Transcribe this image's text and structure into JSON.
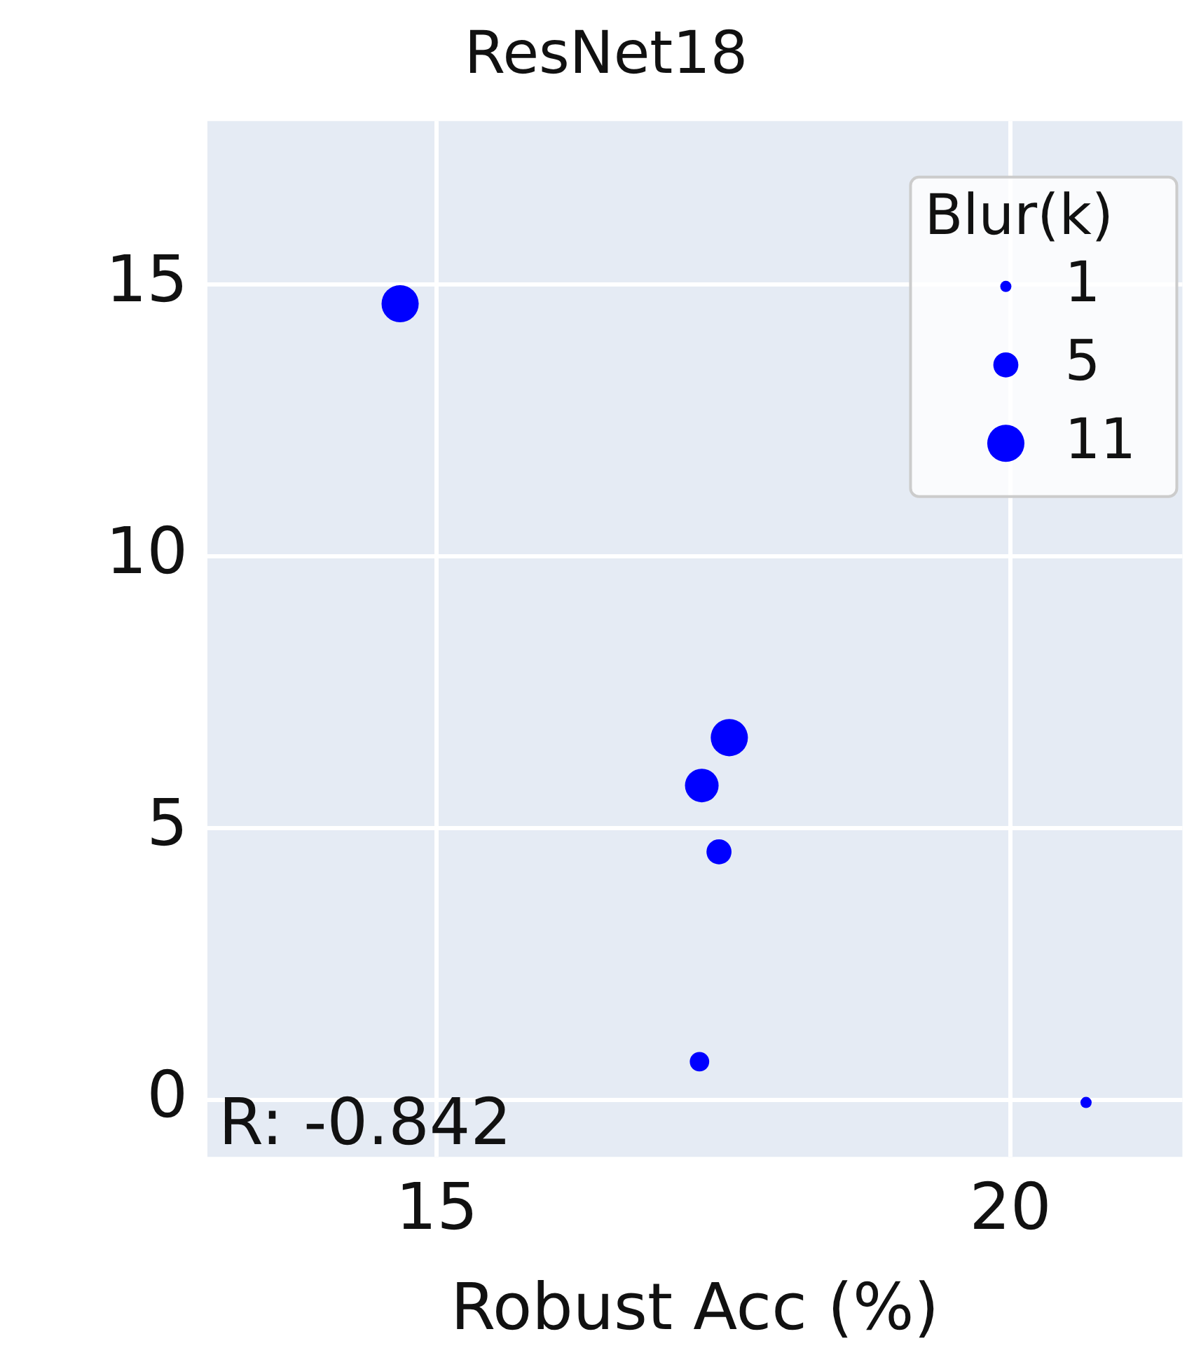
{
  "chart_data": {
    "type": "bubble",
    "title": "ResNet18",
    "xlabel": "Robust Acc (%)",
    "legend_title": "Blur(k)",
    "grid": true,
    "marker": "circle",
    "xlim": [
      13.0,
      21.5
    ],
    "xticks": [
      15,
      20
    ],
    "ylim": [
      -1.05,
      18
    ],
    "yticks": [
      0,
      5,
      10,
      15
    ],
    "series": [
      {
        "color": "#0000ff",
        "x": [
          14.68,
          17.55,
          17.31,
          17.46,
          17.29,
          20.66
        ],
        "values": [
          14.64,
          6.66,
          5.78,
          4.56,
          0.7,
          -0.05
        ],
        "sizes": [
          11,
          11,
          9,
          5,
          3,
          1
        ]
      }
    ],
    "size_legend": [
      1,
      5,
      11
    ],
    "annotations": [
      "R: -0.842"
    ]
  }
}
